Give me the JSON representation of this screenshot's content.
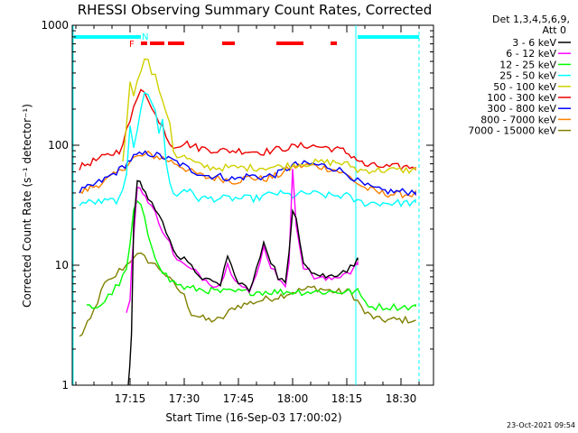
{
  "chart_data": {
    "type": "line",
    "title": "RHESSI Observing Summary Count Rates, Corrected",
    "xlabel": "Start Time (16-Sep-03 17:00:02)",
    "ylabel": "Corrected Count Rate (s⁻¹ detector⁻¹)",
    "yscale": "log",
    "ylim": [
      1,
      1000
    ],
    "xlim_minutes_after_start": [
      -1,
      38
    ],
    "x_ticks": [
      {
        "label": "17:15",
        "minute": 15
      },
      {
        "label": "17:30",
        "minute": 30
      },
      {
        "label": "17:45",
        "minute": 45
      },
      {
        "label": "18:00",
        "minute": 60
      },
      {
        "label": "18:15",
        "minute": 75
      },
      {
        "label": "18:30",
        "minute": 90
      }
    ],
    "y_ticks": [
      {
        "label": "1",
        "value": 1
      },
      {
        "label": "10",
        "value": 10
      },
      {
        "label": "100",
        "value": 100
      },
      {
        "label": "1000",
        "value": 1000
      }
    ],
    "legend_header": [
      "Det 1,3,4,5,6,9,",
      "Att 0"
    ],
    "legend_position": "right",
    "grid": false,
    "series": [
      {
        "name": "3 - 6 keV",
        "color": "#000000",
        "x": [
          14.5,
          14.9,
          15.4,
          16.0,
          17.0,
          18.5,
          20.0,
          22.0,
          24.0,
          26.0,
          28.0,
          30.0,
          32.0,
          34.0,
          36.0,
          38.0,
          40.0,
          42.0,
          44.0,
          46.0,
          48.0,
          50.0,
          52.0,
          54.0,
          56.0,
          58.0,
          59.0,
          60.0,
          61.0,
          63.0,
          66.0,
          70.0,
          74.0,
          76.0,
          78.0
        ],
        "y": [
          1,
          1.4,
          2.5,
          22,
          52,
          45,
          36,
          30,
          22,
          17,
          12,
          11,
          9.5,
          8.5,
          7.5,
          7,
          7,
          12,
          8,
          7,
          6,
          9,
          16,
          11,
          8,
          7,
          12,
          28,
          25,
          11,
          8.5,
          8,
          9,
          9.5,
          11
        ]
      },
      {
        "name": "6 - 12 keV",
        "color": "#ff00ff",
        "x": [
          14.0,
          15.0,
          15.5,
          16.2,
          17.0,
          18.5,
          20.0,
          22.0,
          24.0,
          26.0,
          28.0,
          30.0,
          32.0,
          34.0,
          36.0,
          38.0,
          40.0,
          42.0,
          44.0,
          46.0,
          48.0,
          50.0,
          52.0,
          54.0,
          56.0,
          58.0,
          59.0,
          60.0,
          61.0,
          63.0,
          66.0,
          70.0,
          74.0,
          76.0,
          78.0
        ],
        "y": [
          4.2,
          5,
          10,
          22,
          45,
          42,
          33,
          27,
          20,
          15,
          11,
          10,
          9,
          8.5,
          7.5,
          7,
          7,
          10,
          8,
          7,
          6,
          8,
          14,
          10,
          8,
          7,
          10,
          60,
          22,
          10,
          8,
          7.5,
          8.5,
          9,
          10
        ]
      },
      {
        "name": "12 - 25 keV",
        "color": "#00ff00",
        "x": [
          3,
          6,
          8,
          10,
          12,
          14,
          15,
          16,
          17,
          18,
          19,
          20,
          22,
          24,
          26,
          28,
          30,
          40,
          50,
          60,
          70,
          78,
          80,
          82,
          84,
          86,
          88,
          90,
          92,
          94
        ],
        "y": [
          4.5,
          4.5,
          5,
          6,
          7,
          9,
          15,
          28,
          34,
          30,
          24,
          18,
          12,
          9,
          7.5,
          7,
          6.5,
          6,
          6,
          6,
          6,
          6,
          5,
          4.5,
          4.5,
          4.5,
          4.5,
          4.5,
          4.5,
          4.5
        ]
      },
      {
        "name": "25 - 50 keV",
        "color": "#00ffff",
        "x": [
          1,
          8,
          12,
          13,
          14,
          15,
          16,
          17,
          18,
          19,
          20,
          21,
          22,
          23,
          24,
          25,
          26,
          27,
          28,
          30,
          34,
          40,
          50,
          55,
          60,
          64,
          70,
          75,
          76,
          78,
          80,
          85,
          90,
          94
        ],
        "y": [
          33,
          34,
          35,
          40,
          55,
          150,
          100,
          140,
          210,
          280,
          250,
          230,
          190,
          130,
          170,
          70,
          48,
          40,
          38,
          44,
          36,
          36,
          36,
          40,
          38,
          40,
          38,
          38,
          36,
          34,
          33,
          33,
          33,
          33
        ]
      },
      {
        "name": "50 - 100 keV",
        "color": "#d0d000",
        "x": [
          13,
          14,
          15,
          16,
          17,
          18,
          19,
          20,
          21,
          22,
          23,
          24,
          25,
          26,
          27,
          28,
          30,
          34,
          38,
          44,
          50,
          56,
          62,
          68,
          72,
          76,
          78,
          82,
          88,
          94
        ],
        "y": [
          70,
          150,
          360,
          270,
          330,
          430,
          560,
          500,
          400,
          370,
          300,
          220,
          190,
          160,
          90,
          82,
          80,
          68,
          65,
          65,
          65,
          66,
          70,
          72,
          72,
          68,
          62,
          62,
          62,
          62
        ]
      },
      {
        "name": "100 - 300 keV",
        "color": "#ee0000",
        "x": [
          1,
          4,
          8,
          12,
          14,
          15,
          16,
          17,
          18,
          19,
          20,
          21,
          22,
          23,
          24,
          25,
          26,
          27,
          28,
          30,
          34,
          40,
          46,
          52,
          58,
          64,
          70,
          74,
          77,
          80,
          86,
          94
        ],
        "y": [
          65,
          72,
          80,
          90,
          130,
          160,
          200,
          240,
          300,
          290,
          250,
          200,
          180,
          150,
          155,
          120,
          105,
          100,
          100,
          105,
          95,
          90,
          90,
          88,
          95,
          100,
          95,
          90,
          80,
          68,
          66,
          66
        ]
      },
      {
        "name": "300 - 800 keV",
        "color": "#0000ff",
        "x": [
          1,
          4,
          8,
          12,
          16,
          20,
          24,
          28,
          32,
          36,
          40,
          44,
          48,
          52,
          56,
          60,
          64,
          68,
          72,
          74,
          76,
          78,
          80,
          84,
          88,
          92,
          94
        ],
        "y": [
          41,
          45,
          52,
          62,
          80,
          86,
          80,
          72,
          62,
          56,
          55,
          52,
          56,
          54,
          58,
          68,
          70,
          68,
          64,
          60,
          56,
          50,
          46,
          42,
          41,
          41,
          41
        ]
      },
      {
        "name": "800 - 7000 keV",
        "color": "#ff8000",
        "x": [
          1,
          4,
          8,
          12,
          16,
          20,
          24,
          28,
          32,
          36,
          40,
          44,
          48,
          52,
          56,
          60,
          64,
          68,
          72,
          74,
          76,
          78,
          80,
          84,
          88,
          92,
          94
        ],
        "y": [
          40,
          44,
          50,
          60,
          78,
          84,
          78,
          70,
          60,
          54,
          53,
          50,
          54,
          52,
          56,
          66,
          68,
          66,
          62,
          58,
          54,
          48,
          44,
          40,
          39,
          39,
          39
        ]
      },
      {
        "name": "7000 - 15000 keV",
        "color": "#808000",
        "x": [
          1,
          4,
          6,
          8,
          10,
          12,
          14,
          16,
          18,
          20,
          22,
          24,
          26,
          28,
          30,
          32,
          36,
          40,
          44,
          50,
          56,
          60,
          66,
          72,
          76,
          78,
          80,
          84,
          88,
          92,
          94
        ],
        "y": [
          2.5,
          3.5,
          5,
          7,
          7.5,
          9,
          10,
          12,
          12,
          11,
          10,
          9,
          7.5,
          6.5,
          5.5,
          4,
          3.5,
          3.5,
          4.5,
          5,
          5.5,
          6,
          6.5,
          6,
          6,
          5,
          4,
          3.5,
          3.5,
          3.5,
          3.5
        ]
      }
    ],
    "annotations": {
      "flag_letters": [
        "F",
        "N"
      ],
      "attenuator_color": "#00ffff",
      "flare_color": "#ff0000"
    },
    "timestamp": "23-Oct-2021 09:54"
  }
}
